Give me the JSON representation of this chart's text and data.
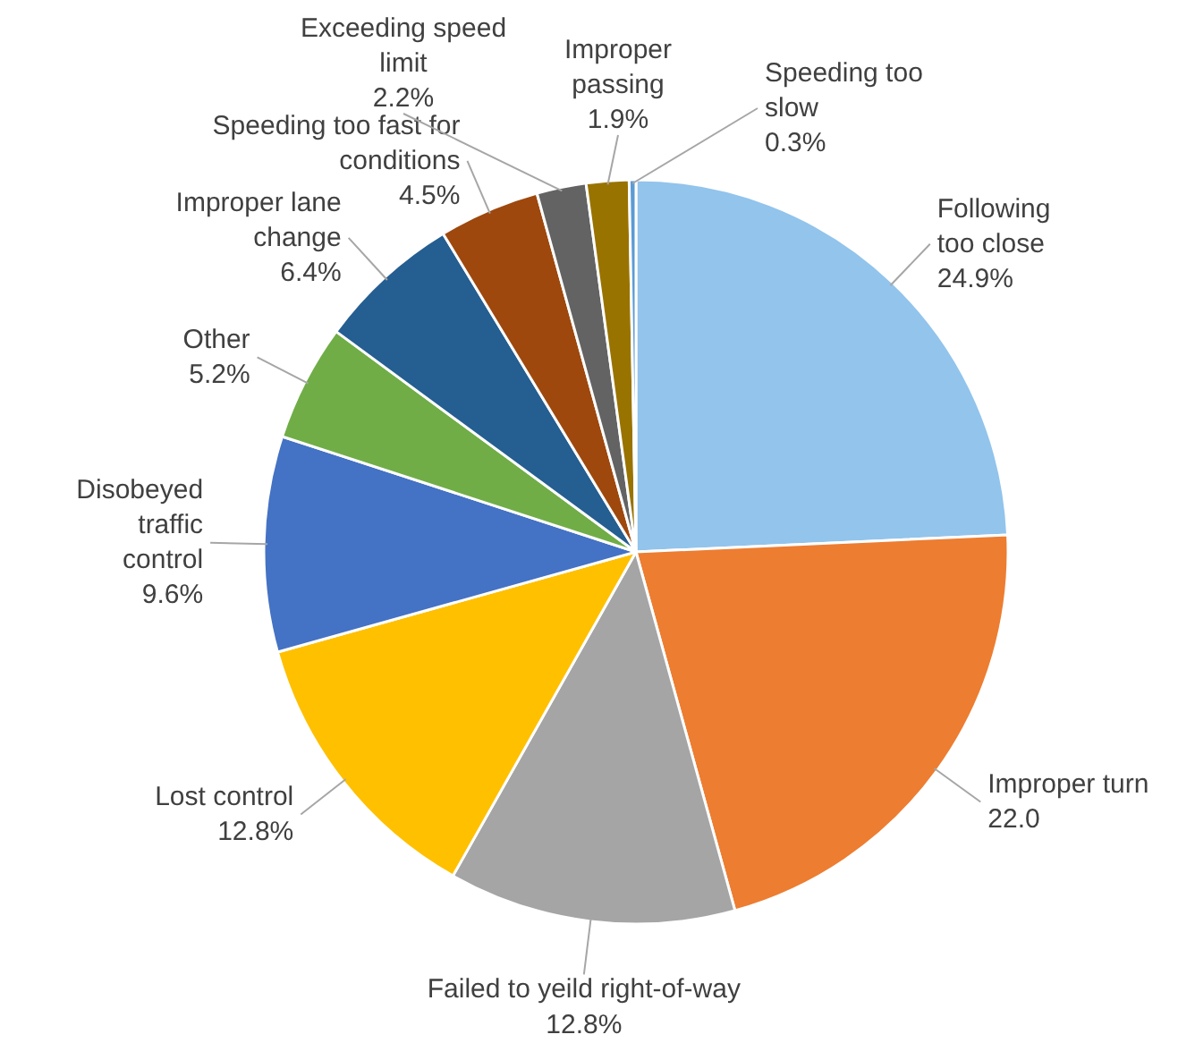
{
  "chart_data": {
    "type": "pie",
    "categories": [
      "Following\ntoo close",
      "Improper turn",
      "Failed to yeild right-of-way",
      "Lost control",
      "Disobeyed\ntraffic\ncontrol",
      "Other",
      "Improper lane\nchange",
      "Speeding too fast for\nconditions",
      "Exceeding speed\nlimit",
      "Improper\npassing",
      "Speeding too\nslow"
    ],
    "values": [
      24.9,
      22.0,
      12.8,
      12.8,
      9.6,
      5.2,
      6.4,
      4.5,
      2.2,
      1.9,
      0.3
    ],
    "value_labels": [
      "24.9%",
      "22.0",
      "12.8%",
      "12.8%",
      "9.6%",
      "5.2%",
      "6.4%",
      "4.5%",
      "2.2%",
      "1.9%",
      "0.3%"
    ],
    "colors": [
      "#92c4ec",
      "#ed7d31",
      "#a5a5a5",
      "#ffc000",
      "#4472c4",
      "#70ad47",
      "#255e91",
      "#9e480e",
      "#636363",
      "#997300",
      "#5b9bd5"
    ]
  }
}
